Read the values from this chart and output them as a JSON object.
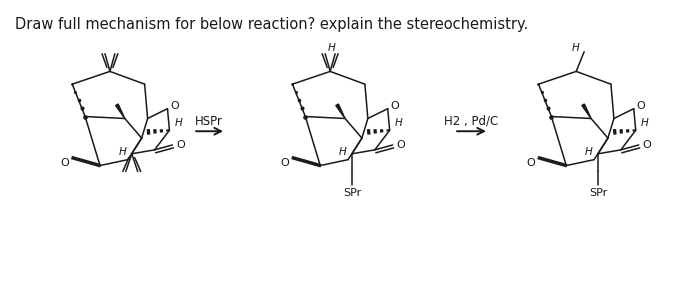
{
  "title": "Draw full mechanism for below reaction? explain the stereochemistry.",
  "title_fontsize": 10.5,
  "background": "#ffffff",
  "reagent1": "HSPr",
  "reagent2": "H2 , Pd/C",
  "gray": "#1a1a1a"
}
